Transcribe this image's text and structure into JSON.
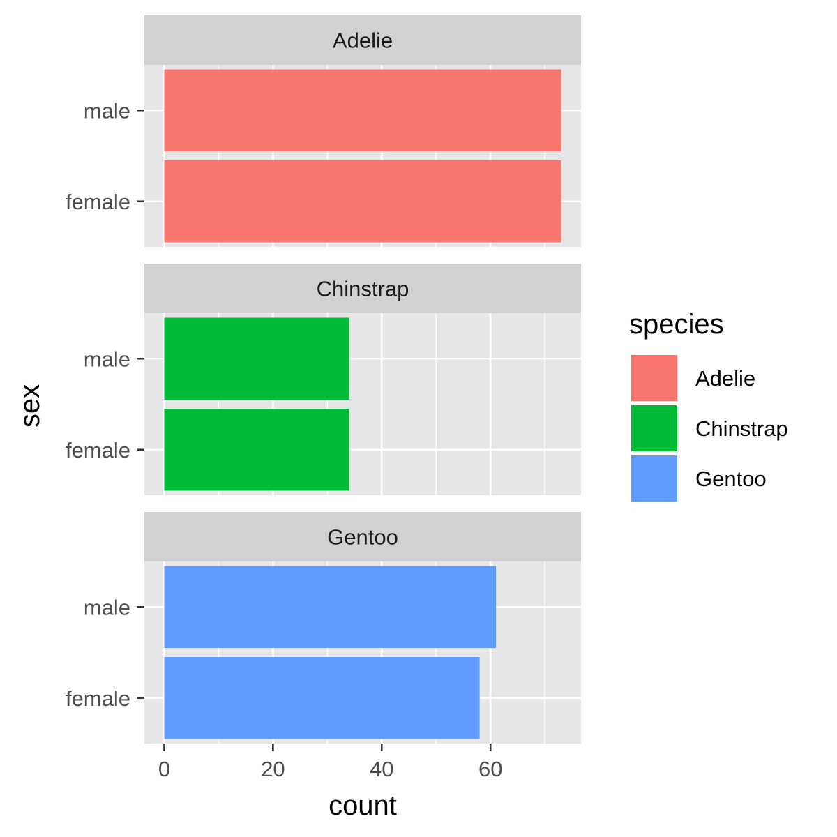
{
  "chart_data": {
    "type": "bar",
    "orientation": "horizontal",
    "facet_by": "species",
    "categories": [
      "male",
      "female"
    ],
    "facets": [
      {
        "name": "Adelie",
        "color": "#F8766D",
        "values": {
          "male": 73,
          "female": 73
        }
      },
      {
        "name": "Chinstrap",
        "color": "#00BA38",
        "values": {
          "male": 34,
          "female": 34
        }
      },
      {
        "name": "Gentoo",
        "color": "#619CFF",
        "values": {
          "male": 61,
          "female": 58
        }
      }
    ],
    "xlabel": "count",
    "ylabel": "sex",
    "xlim": [
      -3.65,
      76.65
    ],
    "xticks": [
      0,
      20,
      40,
      60
    ],
    "xtick_labels": [
      "0",
      "20",
      "40",
      "60"
    ],
    "grid": true,
    "legend": {
      "title": "species",
      "position": "right",
      "items": [
        {
          "label": "Adelie",
          "color": "#F8766D"
        },
        {
          "label": "Chinstrap",
          "color": "#00BA38"
        },
        {
          "label": "Gentoo",
          "color": "#619CFF"
        }
      ]
    }
  }
}
